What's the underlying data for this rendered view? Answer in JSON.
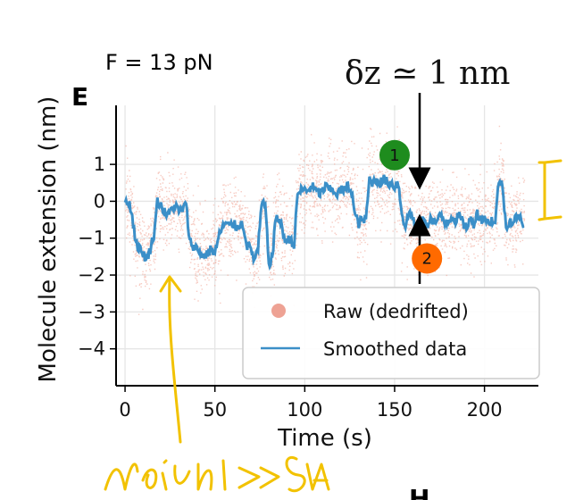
{
  "panel_letter": "E",
  "force_label": "F = 13 pN",
  "delta_label": "δz ≃ 1 nm",
  "bottom_panel_letter": "H",
  "handwritten_note": "Noise >> δz",
  "chart_data": {
    "type": "line",
    "xlabel": "Time (s)",
    "ylabel": "Molecule extension (nm)",
    "xlim": [
      -5,
      230
    ],
    "ylim": [
      -5,
      2.6
    ],
    "xticks": [
      0,
      50,
      100,
      150,
      200
    ],
    "xtick_labels": [
      "0",
      "50",
      "100",
      "150",
      "200"
    ],
    "yticks": [
      1,
      0,
      -1,
      -2,
      -3,
      -4
    ],
    "ytick_labels": [
      "1",
      "0",
      "−1",
      "−2",
      "−3",
      "−4"
    ],
    "grid": true,
    "legend": {
      "position": "lower-right",
      "entries": [
        "Raw (dedrifted)",
        "Smoothed data"
      ]
    },
    "series": [
      {
        "name": "Smoothed data",
        "color": "#3b8fc8",
        "x": [
          0,
          2,
          4,
          6,
          8,
          10,
          12,
          14,
          16,
          18,
          20,
          22,
          24,
          26,
          28,
          30,
          32,
          34,
          36,
          38,
          40,
          42,
          44,
          46,
          48,
          50,
          52,
          54,
          56,
          58,
          60,
          62,
          64,
          66,
          68,
          70,
          72,
          74,
          76,
          78,
          80,
          82,
          84,
          86,
          88,
          90,
          92,
          94,
          96,
          98,
          100,
          102,
          104,
          106,
          108,
          110,
          112,
          114,
          116,
          118,
          120,
          122,
          124,
          126,
          128,
          130,
          132,
          134,
          136,
          138,
          140,
          142,
          144,
          146,
          148,
          150,
          152,
          154,
          156,
          158,
          160,
          162,
          164,
          166,
          168,
          170,
          172,
          174,
          176,
          178,
          180,
          182,
          184,
          186,
          188,
          190,
          192,
          194,
          196,
          198,
          200,
          202,
          204,
          206,
          208,
          210,
          212,
          214,
          216,
          218,
          220,
          222
        ],
        "y": [
          0.0,
          0.0,
          -0.4,
          -1.1,
          -1.3,
          -1.4,
          -1.6,
          -1.3,
          -0.9,
          0.0,
          -0.1,
          -0.3,
          -0.4,
          -0.2,
          -0.1,
          -0.3,
          -0.2,
          -0.1,
          -1.1,
          -1.2,
          -1.3,
          -1.4,
          -1.5,
          -1.4,
          -1.3,
          -1.4,
          -1.0,
          -0.7,
          -0.6,
          -0.7,
          -0.6,
          -0.7,
          -0.6,
          -0.7,
          -1.2,
          -1.3,
          -1.6,
          -1.3,
          -0.1,
          -0.1,
          -1.7,
          -1.5,
          -0.4,
          -0.5,
          -0.9,
          -1.1,
          -1.0,
          -1.2,
          0.2,
          0.3,
          0.3,
          0.3,
          0.4,
          0.3,
          0.2,
          0.3,
          0.4,
          0.3,
          0.3,
          0.2,
          0.3,
          0.3,
          0.4,
          0.3,
          -0.4,
          -0.6,
          -0.5,
          -0.5,
          0.6,
          0.5,
          0.6,
          0.5,
          0.6,
          0.5,
          0.5,
          0.4,
          0.5,
          -0.3,
          -0.7,
          -0.3,
          -0.4,
          -0.8,
          -0.7,
          -0.5,
          -0.7,
          -0.4,
          -0.6,
          -0.5,
          -0.4,
          -0.6,
          -0.5,
          -0.4,
          -0.5,
          -0.4,
          -0.6,
          -0.7,
          -0.5,
          -0.6,
          -0.3,
          -0.5,
          -0.4,
          -0.6,
          -0.5,
          -0.6,
          0.6,
          0.4,
          -0.7,
          -0.5,
          -0.6,
          -0.4,
          -0.5,
          -0.6
        ]
      },
      {
        "name": "Raw (dedrifted)",
        "color": "#f0a090",
        "noise_sd": 0.55
      }
    ],
    "annotations": [
      {
        "label": "1",
        "x": 150,
        "y": 1.25,
        "color": "#1e8c1e"
      },
      {
        "label": "2",
        "x": 168,
        "y": -1.55,
        "color": "#ff6a00"
      }
    ]
  }
}
